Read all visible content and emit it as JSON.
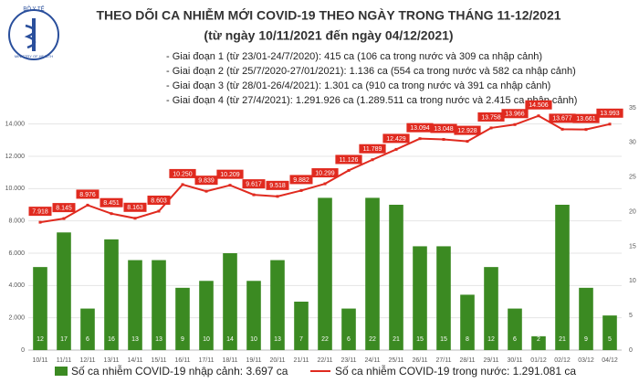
{
  "logo_text": "BỘ Y TẾ",
  "logo_caption": "MINISTRY OF HEALTH",
  "chart_data": {
    "type": "combo",
    "title": "THEO DÕI CA NHIỄM MỚI COVID-19 THEO NGÀY TRONG THÁNG 11-12/2021",
    "subtitle": "(từ ngày 10/11/2021 đến ngày 04/12/2021)",
    "notes": [
      "- Giai đoạn 1 (từ 23/01-24/7/2020): 415 ca (106 ca trong nước và 309 ca nhập cảnh)",
      "- Giai đoạn 2 (từ 25/7/2020-27/01/2021): 1.136 ca (554 ca trong nước và 582 ca nhập cảnh)",
      "- Giai đoạn 3 (từ 28/01-26/4/2021): 1.301 ca (910 ca trong nước và 391 ca nhập cảnh)",
      "- Giai đoạn 4 (từ 27/4/2021): 1.291.926 ca (1.289.511 ca trong nước và 2.415 ca nhập cảnh)"
    ],
    "categories": [
      "10/11",
      "11/11",
      "12/11",
      "13/11",
      "14/11",
      "15/11",
      "16/11",
      "17/11",
      "18/11",
      "19/11",
      "20/11",
      "21/11",
      "22/11",
      "23/11",
      "24/11",
      "25/11",
      "26/11",
      "27/11",
      "28/11",
      "29/11",
      "30/11",
      "01/12",
      "02/12",
      "03/12",
      "04/12"
    ],
    "series": [
      {
        "name": "Số ca nhiễm COVID-19 nhập cảnh: 3.697 ca",
        "type": "bar",
        "axis": "y2",
        "color": "#3b8a22",
        "values": [
          12,
          17,
          6,
          16,
          13,
          13,
          9,
          10,
          14,
          10,
          13,
          7,
          22,
          6,
          22,
          21,
          15,
          15,
          8,
          12,
          6,
          2,
          21,
          9,
          5
        ]
      },
      {
        "name": "Số ca nhiễm COVID-19 trong nước: 1.291.081 ca",
        "type": "line",
        "color": "#e02a1f",
        "values": [
          7918,
          8145,
          8976,
          8451,
          8163,
          8603,
          10250,
          9839,
          10209,
          9617,
          9518,
          9882,
          10299,
          11126,
          11789,
          12429,
          13094,
          13048,
          12928,
          13758,
          13966,
          14506,
          13677,
          13661,
          13993
        ],
        "value_labels": [
          "7.918",
          "8.145",
          "8.976",
          "8.451",
          "8.163",
          "8.603",
          "10.250",
          "9.839",
          "10.209",
          "9.617",
          "9.518",
          "9.882",
          "10.299",
          "11.126",
          "11.789",
          "12.429",
          "13.094",
          "13.048",
          "12.928",
          "13.758",
          "13.966",
          "14.506",
          "13.677",
          "13.661",
          "13.993"
        ]
      }
    ],
    "ylim": [
      0,
      15000
    ],
    "yticks": [
      0,
      {
        "value": 2000,
        "label": "2.000"
      },
      {
        "value": 4000,
        "label": "4.000"
      },
      {
        "value": 6000,
        "label": "6.000"
      },
      {
        "value": 8000,
        "label": "8.000"
      },
      {
        "value": 10000,
        "label": "10.000"
      },
      {
        "value": 12000,
        "label": "12.000"
      },
      {
        "value": 14000,
        "label": "14.000"
      }
    ],
    "y2lim": [
      0,
      35
    ],
    "y2ticks": [
      0,
      5,
      10,
      15,
      20,
      25,
      30,
      35
    ],
    "grid": true
  }
}
